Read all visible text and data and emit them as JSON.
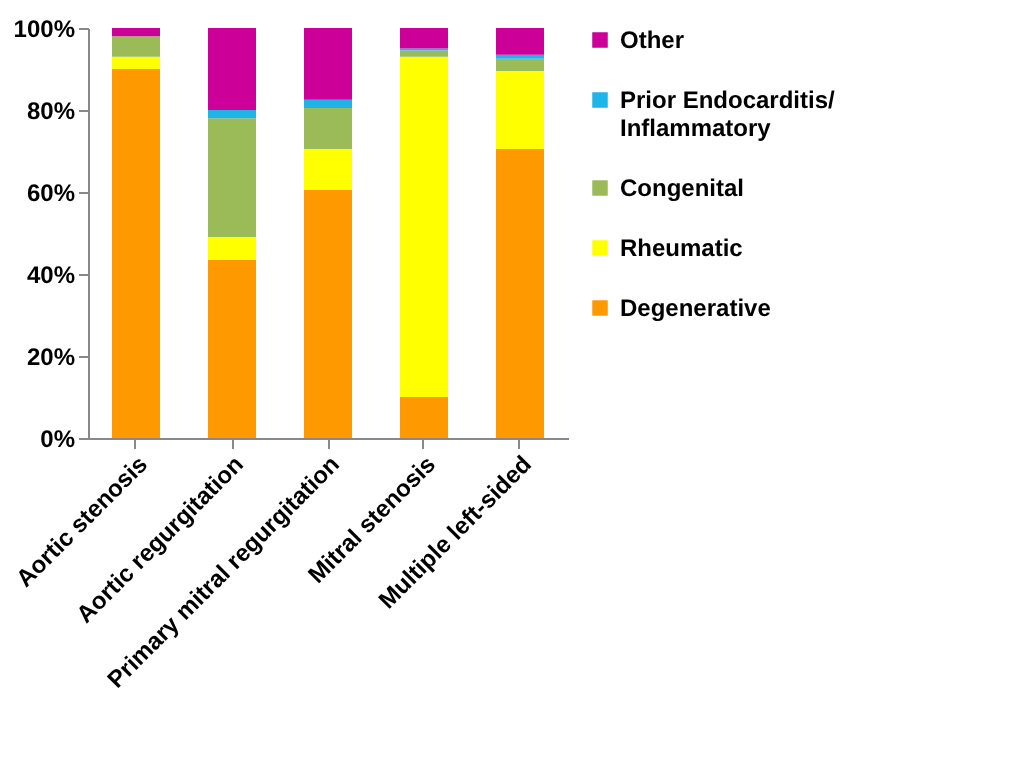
{
  "chart_data": {
    "type": "bar",
    "stacked": true,
    "categories": [
      "Aortic stenosis",
      "Aortic regurgitation",
      "Primary mitral regurgitation",
      "Mitral stenosis",
      "Multiple left-sided"
    ],
    "series": [
      {
        "name": "Degenerative",
        "color": "#ff9900",
        "values": [
          90,
          43.5,
          60.5,
          10,
          70.5
        ]
      },
      {
        "name": "Rheumatic",
        "color": "#ffff00",
        "values": [
          3,
          5.5,
          10,
          83,
          19
        ]
      },
      {
        "name": "Congenital",
        "color": "#9bbb59",
        "values": [
          5,
          29,
          10,
          1.5,
          3
        ]
      },
      {
        "name": "Prior Endocarditis/ Inflammatory",
        "color": "#1fb4e8",
        "values": [
          0,
          2,
          2,
          0.5,
          1
        ]
      },
      {
        "name": "Other",
        "color": "#cc0099",
        "values": [
          2,
          20,
          17.5,
          5,
          6.5
        ]
      }
    ],
    "ylim": [
      0,
      100
    ],
    "yticks": [
      {
        "value": 0,
        "label": "0%"
      },
      {
        "value": 20,
        "label": "20%"
      },
      {
        "value": 40,
        "label": "40%"
      },
      {
        "value": 60,
        "label": "60%"
      },
      {
        "value": 80,
        "label": "80%"
      },
      {
        "value": 100,
        "label": "100%"
      }
    ],
    "grid": false,
    "legend": "right"
  }
}
